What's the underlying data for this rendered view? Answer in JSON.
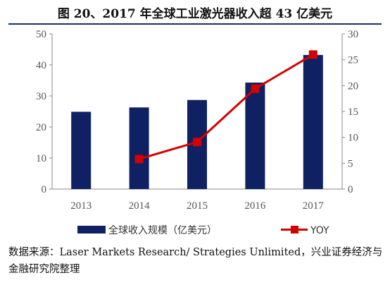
{
  "title": "图 20、2017 年全球工业激光器收入超 43 亿美元",
  "source": "数据来源：Laser Markets Research/ Strategies Unlimited，兴业证券经济与金融研究院整理",
  "chart_data": {
    "type": "bar+line",
    "title": "图 20、2017 年全球工业激光器收入超 43 亿美元",
    "categories": [
      "2013",
      "2014",
      "2015",
      "2016",
      "2017"
    ],
    "series": [
      {
        "name": "全球收入规模（亿美元）",
        "type": "bar",
        "axis": "left",
        "color": "#0f2162",
        "values": [
          24.9,
          26.3,
          28.7,
          34.3,
          43.2
        ]
      },
      {
        "name": "YOY",
        "type": "line",
        "axis": "right",
        "color": "#d40000",
        "values": [
          null,
          5.8,
          9.1,
          19.4,
          26.0
        ]
      }
    ],
    "y_left": {
      "ylim": [
        0,
        50
      ],
      "ticks": [
        "0",
        "10",
        "20",
        "30",
        "40",
        "50"
      ]
    },
    "y_right": {
      "ylim": [
        0,
        30
      ],
      "ticks": [
        "0",
        "5",
        "10",
        "15",
        "20",
        "25",
        "30"
      ]
    },
    "grid": false,
    "legend": "bottom"
  }
}
